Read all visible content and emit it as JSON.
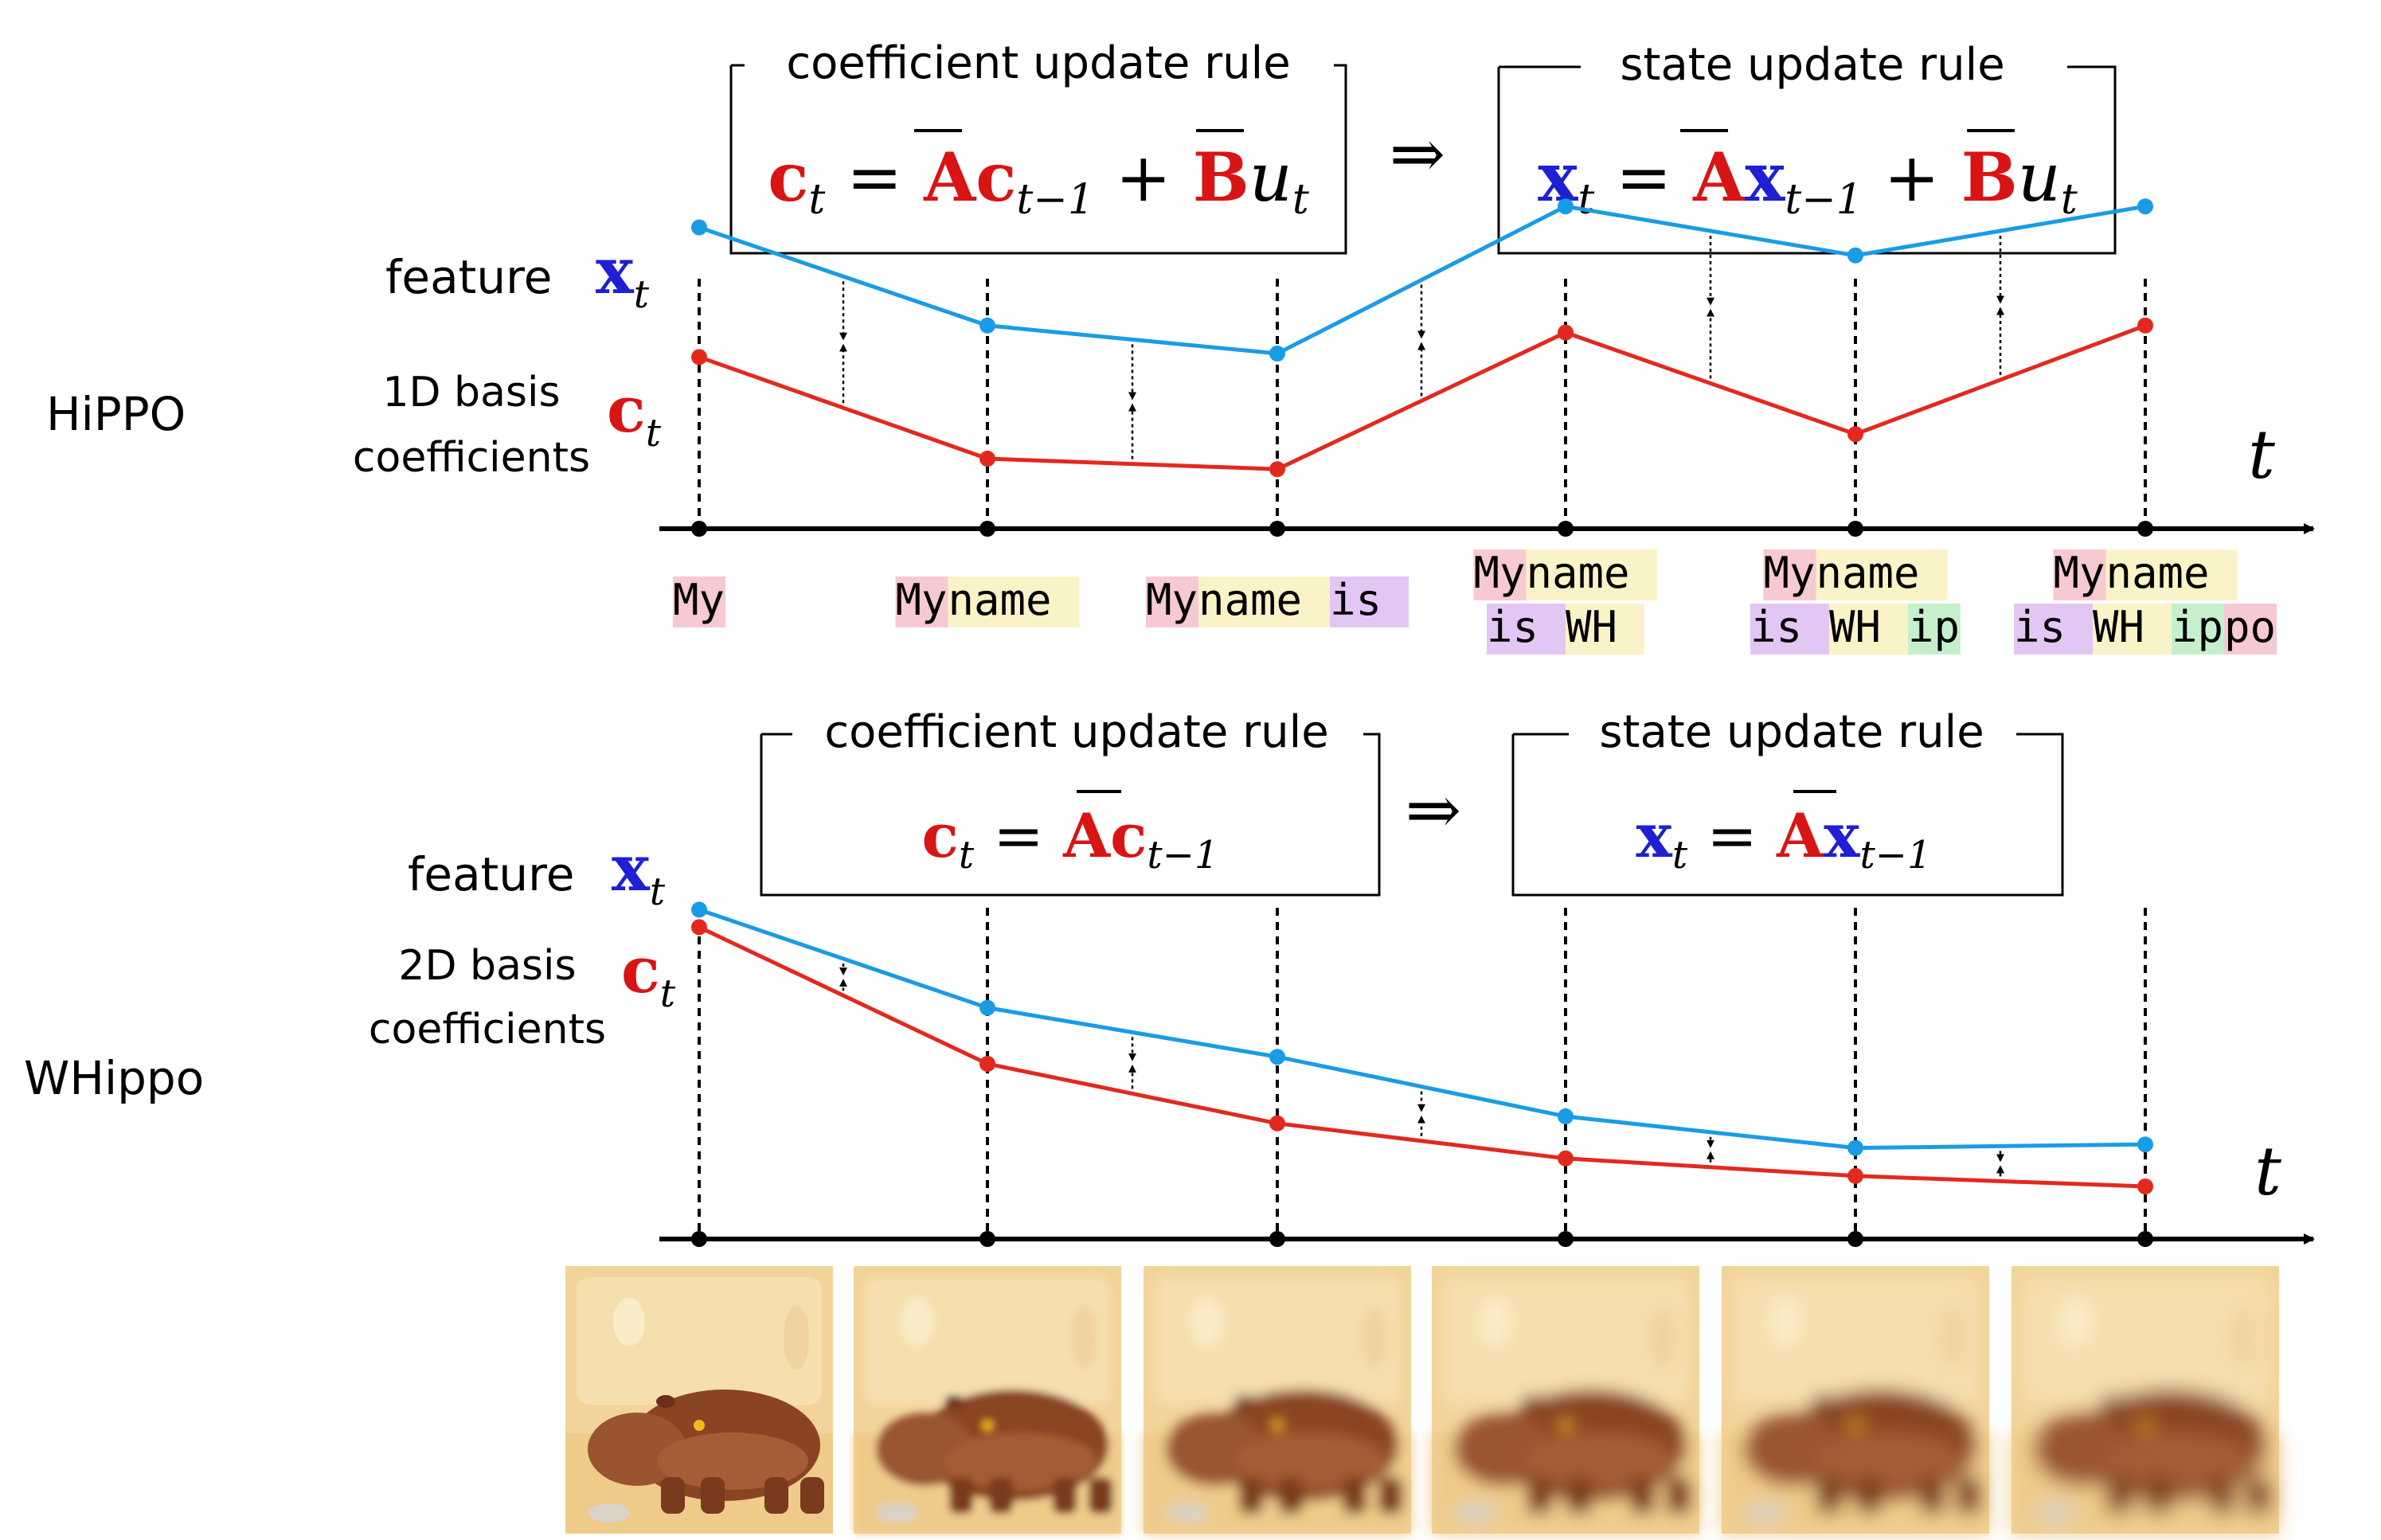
{
  "colors": {
    "feature_line": "#1a9be6",
    "coef_line": "#e3291e",
    "x_symbol": "#1f1fd6",
    "c_symbol": "#d81414",
    "axis": "#000000",
    "token_my": "#f7c9d2",
    "token_name": "#fbf3c8",
    "token_is": "#e2c7f5",
    "token_wh": "#fbf3c8",
    "token_ip": "#c6f0cc",
    "token_po": "#f7c9d2",
    "image_bg": "#f2d49a",
    "hippo_body": "#8a4424"
  },
  "hippo": {
    "row_label": "HiPPO",
    "coef_box_title": "coefficient update rule",
    "coef_rule": {
      "lhs": "c",
      "lhs_sub": "t",
      "eq": "=",
      "A": "A",
      "c": "c",
      "c_sub": "t−1",
      "plus": "+",
      "B": "B",
      "u": "u",
      "u_sub": "t"
    },
    "implies": "⇒",
    "state_box_title": "state update rule",
    "state_rule": {
      "lhs": "x",
      "lhs_sub": "t",
      "eq": "=",
      "A": "A",
      "x": "x",
      "x_sub": "t−1",
      "plus": "+",
      "B": "B",
      "u": "u",
      "u_sub": "t"
    },
    "feature_label": "feature",
    "x_sym": "x",
    "x_sub": "t",
    "coef_label_line1": "1D basis",
    "coef_label_line2": "coefficients",
    "c_sym": "c",
    "c_sub": "t",
    "axis_label": "t",
    "feature_values": [
      0.86,
      0.58,
      0.5,
      0.92,
      0.78,
      0.92
    ],
    "coef_values": [
      0.49,
      0.2,
      0.17,
      0.56,
      0.27,
      0.58
    ],
    "tokens": [
      [
        [
          {
            "text": "My",
            "color": "#f7c9d2"
          }
        ]
      ],
      [
        [
          {
            "text": "My",
            "color": "#f7c9d2"
          },
          {
            "text": " name",
            "color": "#fbf3c8"
          }
        ]
      ],
      [
        [
          {
            "text": "My",
            "color": "#f7c9d2"
          },
          {
            "text": " name",
            "color": "#fbf3c8"
          },
          {
            "text": " is",
            "color": "#e2c7f5"
          }
        ]
      ],
      [
        [
          {
            "text": "My",
            "color": "#f7c9d2"
          },
          {
            "text": " name",
            "color": "#fbf3c8"
          }
        ],
        [
          {
            "text": " is",
            "color": "#e2c7f5"
          },
          {
            "text": " WH",
            "color": "#fbf3c8"
          }
        ]
      ],
      [
        [
          {
            "text": "My",
            "color": "#f7c9d2"
          },
          {
            "text": " name",
            "color": "#fbf3c8"
          }
        ],
        [
          {
            "text": " is",
            "color": "#e2c7f5"
          },
          {
            "text": " WH",
            "color": "#fbf3c8"
          },
          {
            "text": "ip",
            "color": "#c6f0cc"
          }
        ]
      ],
      [
        [
          {
            "text": "My",
            "color": "#f7c9d2"
          },
          {
            "text": " name",
            "color": "#fbf3c8"
          }
        ],
        [
          {
            "text": " is",
            "color": "#e2c7f5"
          },
          {
            "text": " WH",
            "color": "#fbf3c8"
          },
          {
            "text": "ip",
            "color": "#c6f0cc"
          },
          {
            "text": "po",
            "color": "#f7c9d2"
          }
        ]
      ]
    ]
  },
  "whippo": {
    "row_label": "WHippo",
    "coef_box_title": "coefficient update rule",
    "coef_rule": {
      "lhs": "c",
      "lhs_sub": "t",
      "eq": "=",
      "A": "A",
      "c": "c",
      "c_sub": "t−1"
    },
    "implies": "⇒",
    "state_box_title": "state update rule",
    "state_rule": {
      "lhs": "x",
      "lhs_sub": "t",
      "eq": "=",
      "A": "A",
      "x": "x",
      "x_sub": "t−1"
    },
    "feature_label": "feature",
    "x_sym": "x",
    "x_sub": "t",
    "coef_label_line1": "2D basis",
    "coef_label_line2": "coefficients",
    "c_sym": "c",
    "c_sub": "t",
    "axis_label": "t",
    "feature_values": [
      0.94,
      0.66,
      0.52,
      0.35,
      0.26,
      0.27
    ],
    "coef_values": [
      0.89,
      0.5,
      0.33,
      0.23,
      0.18,
      0.15
    ],
    "images": [
      {
        "blur": 0
      },
      {
        "blur": 0.35
      },
      {
        "blur": 0.55
      },
      {
        "blur": 0.7
      },
      {
        "blur": 0.8
      },
      {
        "blur": 0.9
      }
    ]
  }
}
